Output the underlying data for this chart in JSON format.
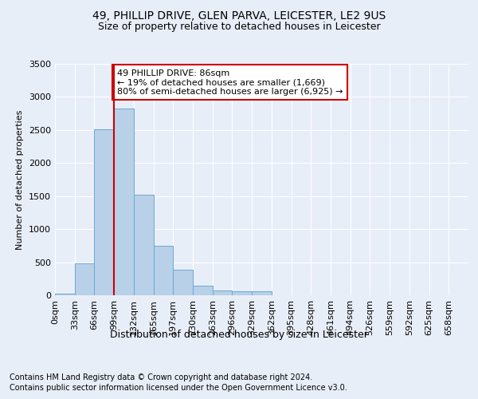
{
  "title": "49, PHILLIP DRIVE, GLEN PARVA, LEICESTER, LE2 9US",
  "subtitle": "Size of property relative to detached houses in Leicester",
  "xlabel": "Distribution of detached houses by size in Leicester",
  "ylabel": "Number of detached properties",
  "bar_values": [
    20,
    480,
    2510,
    2820,
    1520,
    750,
    390,
    140,
    75,
    55,
    55,
    0,
    0,
    0,
    0,
    0,
    0,
    0,
    0,
    0,
    0
  ],
  "bar_labels": [
    "0sqm",
    "33sqm",
    "66sqm",
    "99sqm",
    "132sqm",
    "165sqm",
    "197sqm",
    "230sqm",
    "263sqm",
    "296sqm",
    "329sqm",
    "362sqm",
    "395sqm",
    "428sqm",
    "461sqm",
    "494sqm",
    "526sqm",
    "559sqm",
    "592sqm",
    "625sqm",
    "658sqm"
  ],
  "bar_color": "#b8d0e8",
  "bar_edge_color": "#6aaad4",
  "ylim": [
    0,
    3500
  ],
  "yticks": [
    0,
    500,
    1000,
    1500,
    2000,
    2500,
    3000,
    3500
  ],
  "vline_x": 3.0,
  "annotation_text": "49 PHILLIP DRIVE: 86sqm\n← 19% of detached houses are smaller (1,669)\n80% of semi-detached houses are larger (6,925) →",
  "annotation_box_color": "#ffffff",
  "annotation_box_edge_color": "#cc0000",
  "vline_color": "#cc0000",
  "footnote1": "Contains HM Land Registry data © Crown copyright and database right 2024.",
  "footnote2": "Contains public sector information licensed under the Open Government Licence v3.0.",
  "background_color": "#e8eef8",
  "axes_background_color": "#e8eef8",
  "grid_color": "#ffffff",
  "title_fontsize": 10,
  "subtitle_fontsize": 9,
  "ylabel_fontsize": 8,
  "xlabel_fontsize": 9,
  "tick_fontsize": 8,
  "annot_fontsize": 8,
  "footnote_fontsize": 7
}
